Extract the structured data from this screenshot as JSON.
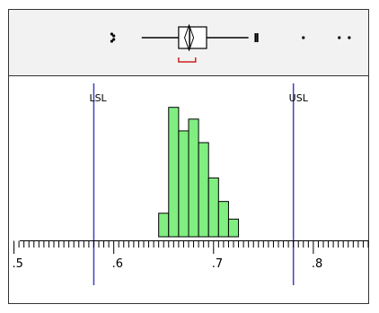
{
  "chart_data": {
    "type": "bar",
    "subtype": "histogram-with-boxplot",
    "title": "",
    "xlabel": "",
    "ylabel": "",
    "xlim": [
      0.495,
      0.855
    ],
    "x_ticks": [
      0.5,
      0.6,
      0.7,
      0.8
    ],
    "x_tick_labels": [
      ".5",
      ".6",
      ".7",
      ".8"
    ],
    "bin_width": 0.01,
    "bins": [
      {
        "start": 0.645,
        "end": 0.655,
        "count": 2
      },
      {
        "start": 0.655,
        "end": 0.665,
        "count": 11
      },
      {
        "start": 0.665,
        "end": 0.675,
        "count": 9
      },
      {
        "start": 0.675,
        "end": 0.685,
        "count": 10
      },
      {
        "start": 0.685,
        "end": 0.695,
        "count": 8
      },
      {
        "start": 0.695,
        "end": 0.705,
        "count": 5
      },
      {
        "start": 0.705,
        "end": 0.715,
        "count": 3
      },
      {
        "start": 0.715,
        "end": 0.725,
        "count": 1.5
      }
    ],
    "ylim": [
      0,
      12.5
    ],
    "spec_limits": [
      {
        "label": "LSL",
        "value": 0.58
      },
      {
        "label": "USL",
        "value": 0.78
      }
    ],
    "boxplot": {
      "whisker_low": 0.628,
      "q1": 0.665,
      "mean_diamond_left": 0.671,
      "mean_diamond_right": 0.68,
      "median": 0.676,
      "q3": 0.693,
      "whisker_high": 0.735,
      "shortest_half": [
        0.665,
        0.682
      ],
      "outliers": [
        0.598,
        0.6,
        0.598,
        0.6,
        0.742,
        0.744,
        0.79,
        0.826,
        0.836
      ]
    },
    "colors": {
      "bar_fill": "#80ee80",
      "bar_stroke": "#000000",
      "spec_line": "#4040c0",
      "shortest_half": "#d02020",
      "boxplot_panel": "#f2f2f2"
    },
    "grid": false,
    "legend": "none"
  }
}
